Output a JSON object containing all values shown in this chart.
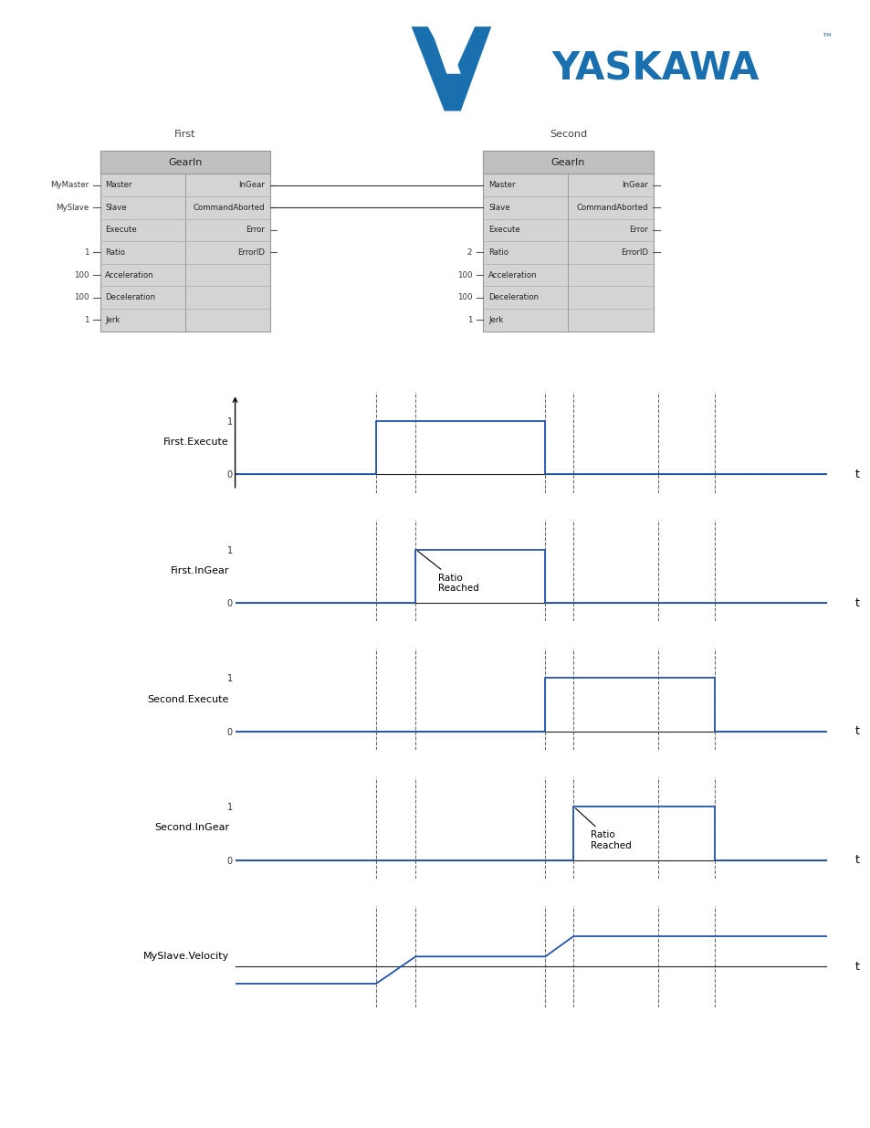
{
  "bg_color": "#ffffff",
  "signal_color": "#2255aa",
  "dashed_color": "#666666",
  "dashed_x": [
    2.5,
    3.2,
    5.5,
    6.0,
    7.5,
    8.5
  ],
  "first_execute": {
    "x": [
      0,
      2.5,
      2.5,
      5.5,
      5.5,
      10.5
    ],
    "y": [
      0,
      0,
      1,
      1,
      0,
      0
    ]
  },
  "first_ingear": {
    "x": [
      0,
      3.2,
      3.2,
      5.5,
      5.5,
      10.5
    ],
    "y": [
      0,
      0,
      1,
      1,
      0,
      0
    ]
  },
  "second_execute": {
    "x": [
      0,
      5.5,
      5.5,
      8.5,
      8.5,
      10.5
    ],
    "y": [
      0,
      0,
      1,
      1,
      0,
      0
    ]
  },
  "second_ingear": {
    "x": [
      0,
      6.0,
      6.0,
      8.5,
      8.5,
      10.5
    ],
    "y": [
      0,
      0,
      1,
      1,
      0,
      0
    ]
  },
  "myslave_velocity": {
    "x": [
      0,
      2.5,
      3.2,
      5.5,
      6.0,
      10.5
    ],
    "y": [
      -0.25,
      -0.25,
      0.15,
      0.15,
      0.45,
      0.45
    ]
  },
  "signal_labels": [
    "First.Execute",
    "First.InGear",
    "Second.Execute",
    "Second.InGear",
    "MySlave.Velocity"
  ],
  "signal_keys": [
    "first_execute",
    "first_ingear",
    "second_execute",
    "second_ingear",
    "myslave_velocity"
  ],
  "first_block": {
    "title": "First",
    "header": "GearIn",
    "inputs": [
      "Master",
      "Slave",
      "Execute",
      "Ratio",
      "Acceleration",
      "Deceleration",
      "Jerk"
    ],
    "input_labels": [
      "MyMaster",
      "MySlave",
      "",
      "1",
      "100",
      "100",
      "1"
    ],
    "outputs": [
      "InGear",
      "CommandAborted",
      "Error",
      "ErrorID",
      "",
      "",
      ""
    ],
    "output_labels": [
      "",
      "",
      "",
      "",
      "",
      "",
      ""
    ]
  },
  "second_block": {
    "title": "Second",
    "header": "GearIn",
    "inputs": [
      "Master",
      "Slave",
      "Execute",
      "Ratio",
      "Acceleration",
      "Deceleration",
      "Jerk"
    ],
    "input_labels": [
      "",
      "",
      "",
      "2",
      "100",
      "100",
      "1"
    ],
    "outputs": [
      "InGear",
      "CommandAborted",
      "Error",
      "ErrorID",
      "",
      "",
      ""
    ],
    "output_labels": [
      "",
      "",
      "",
      "",
      "",
      "",
      ""
    ]
  }
}
